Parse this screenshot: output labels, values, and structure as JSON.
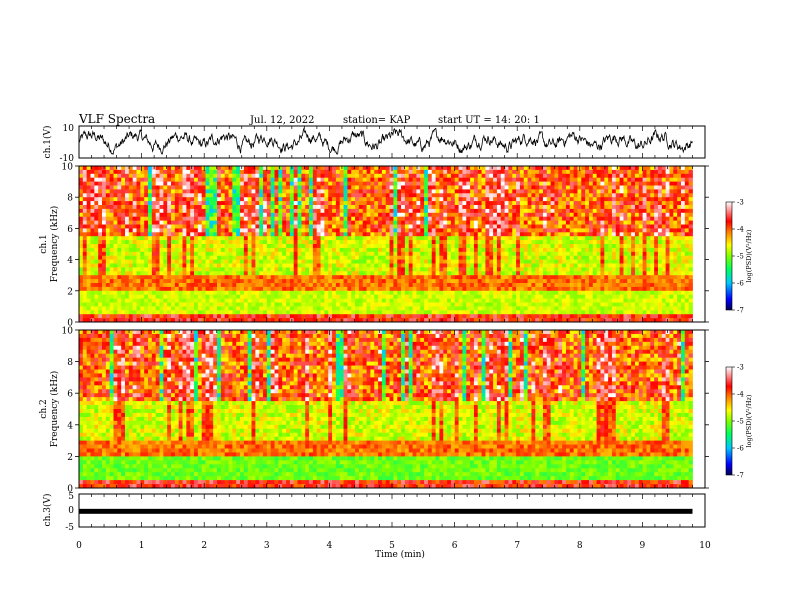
{
  "header": {
    "title": "VLF Spectra",
    "date": "Jul. 12, 2022",
    "station": "station= KAP",
    "start": "start UT = 14: 20: 1"
  },
  "chart_data": [
    {
      "type": "line",
      "panel": "ch1-waveform",
      "ylabel": "ch.1(V)",
      "ylim": [
        -10,
        10
      ],
      "yticks": [
        "10",
        "-10"
      ],
      "xlim": [
        0,
        10
      ],
      "description": "raw voltage envelope, fluctuating roughly between -7 and 8 V over 0-9.8 min"
    },
    {
      "type": "heatmap",
      "panel": "ch1-spectrogram",
      "ylabel": "ch.1 Frequency (kHz)",
      "ylim": [
        0,
        10
      ],
      "yticks": [
        "0",
        "2",
        "4",
        "6",
        "8",
        "10"
      ],
      "xlim": [
        0,
        9.8
      ],
      "colorbar": {
        "label": "log(PSD)(V²/Hz)",
        "range": [
          -7,
          -3
        ],
        "ticks": [
          "-3",
          "-4",
          "-5",
          "-6",
          "-7"
        ]
      }
    },
    {
      "type": "heatmap",
      "panel": "ch2-spectrogram",
      "ylabel": "ch.2 Frequency (kHz)",
      "ylim": [
        0,
        10
      ],
      "yticks": [
        "0",
        "2",
        "4",
        "6",
        "8",
        "10"
      ],
      "xlim": [
        0,
        9.8
      ],
      "colorbar": {
        "label": "log(PSD)(V²/Hz)",
        "range": [
          -7,
          -3
        ],
        "ticks": [
          "-3",
          "-4",
          "-5",
          "-6",
          "-7"
        ]
      }
    },
    {
      "type": "line",
      "panel": "ch3-waveform",
      "ylabel": "ch.3(V)",
      "ylim": [
        -5,
        5
      ],
      "yticks": [
        "5",
        "0",
        "-5"
      ],
      "xlim": [
        0,
        10
      ],
      "values_summary": "flat thick trace near -0.5 V from 0 to 9.8 min"
    }
  ],
  "xaxis": {
    "label": "Time (min)",
    "ticks": [
      "0",
      "1",
      "2",
      "3",
      "4",
      "5",
      "6",
      "7",
      "8",
      "9",
      "10"
    ]
  },
  "colors": {
    "colormap": [
      "#000080",
      "#0000ff",
      "#00c8ff",
      "#00ff80",
      "#80ff00",
      "#ffff00",
      "#ff8000",
      "#ff0000",
      "#ffd0d0",
      "#ffffff"
    ],
    "trace": "#000000"
  }
}
